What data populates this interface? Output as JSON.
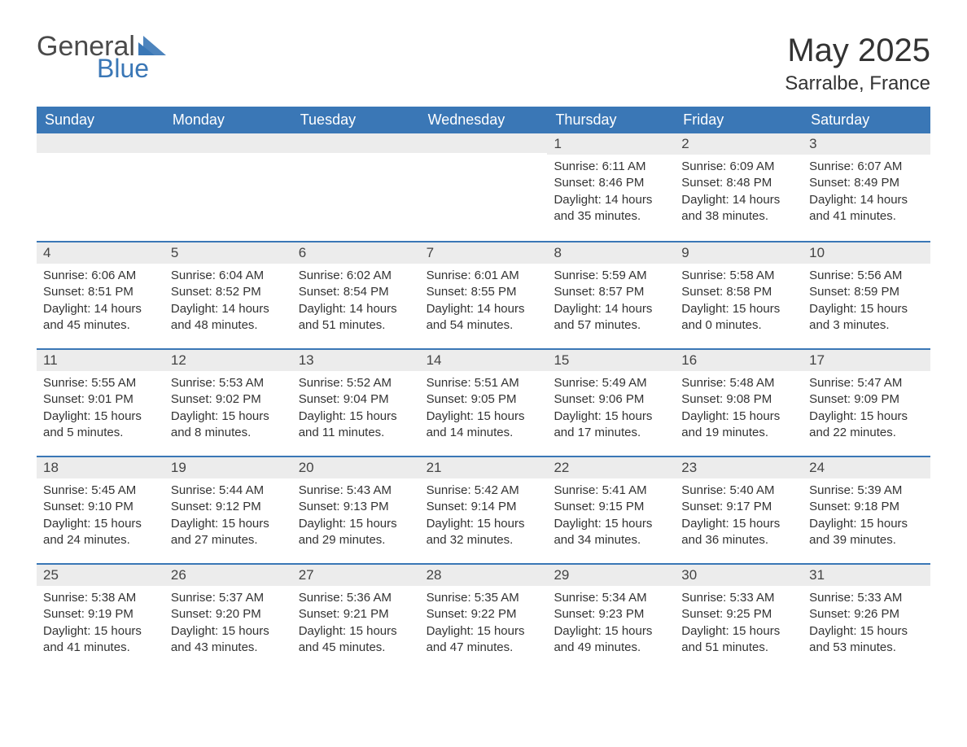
{
  "brand": {
    "general": "General",
    "blue": "Blue",
    "tri_color": "#3a77b6"
  },
  "header": {
    "month": "May 2025",
    "location": "Sarralbe, France"
  },
  "colors": {
    "header_bg": "#3a77b6",
    "header_text": "#ffffff",
    "daynum_bg": "#ececec",
    "week_border": "#3a77b6",
    "body_text": "#333333"
  },
  "daynames": [
    "Sunday",
    "Monday",
    "Tuesday",
    "Wednesday",
    "Thursday",
    "Friday",
    "Saturday"
  ],
  "weeks": [
    [
      {
        "n": "",
        "sr": "",
        "ss": "",
        "dl": ""
      },
      {
        "n": "",
        "sr": "",
        "ss": "",
        "dl": ""
      },
      {
        "n": "",
        "sr": "",
        "ss": "",
        "dl": ""
      },
      {
        "n": "",
        "sr": "",
        "ss": "",
        "dl": ""
      },
      {
        "n": "1",
        "sr": "Sunrise: 6:11 AM",
        "ss": "Sunset: 8:46 PM",
        "dl": "Daylight: 14 hours and 35 minutes."
      },
      {
        "n": "2",
        "sr": "Sunrise: 6:09 AM",
        "ss": "Sunset: 8:48 PM",
        "dl": "Daylight: 14 hours and 38 minutes."
      },
      {
        "n": "3",
        "sr": "Sunrise: 6:07 AM",
        "ss": "Sunset: 8:49 PM",
        "dl": "Daylight: 14 hours and 41 minutes."
      }
    ],
    [
      {
        "n": "4",
        "sr": "Sunrise: 6:06 AM",
        "ss": "Sunset: 8:51 PM",
        "dl": "Daylight: 14 hours and 45 minutes."
      },
      {
        "n": "5",
        "sr": "Sunrise: 6:04 AM",
        "ss": "Sunset: 8:52 PM",
        "dl": "Daylight: 14 hours and 48 minutes."
      },
      {
        "n": "6",
        "sr": "Sunrise: 6:02 AM",
        "ss": "Sunset: 8:54 PM",
        "dl": "Daylight: 14 hours and 51 minutes."
      },
      {
        "n": "7",
        "sr": "Sunrise: 6:01 AM",
        "ss": "Sunset: 8:55 PM",
        "dl": "Daylight: 14 hours and 54 minutes."
      },
      {
        "n": "8",
        "sr": "Sunrise: 5:59 AM",
        "ss": "Sunset: 8:57 PM",
        "dl": "Daylight: 14 hours and 57 minutes."
      },
      {
        "n": "9",
        "sr": "Sunrise: 5:58 AM",
        "ss": "Sunset: 8:58 PM",
        "dl": "Daylight: 15 hours and 0 minutes."
      },
      {
        "n": "10",
        "sr": "Sunrise: 5:56 AM",
        "ss": "Sunset: 8:59 PM",
        "dl": "Daylight: 15 hours and 3 minutes."
      }
    ],
    [
      {
        "n": "11",
        "sr": "Sunrise: 5:55 AM",
        "ss": "Sunset: 9:01 PM",
        "dl": "Daylight: 15 hours and 5 minutes."
      },
      {
        "n": "12",
        "sr": "Sunrise: 5:53 AM",
        "ss": "Sunset: 9:02 PM",
        "dl": "Daylight: 15 hours and 8 minutes."
      },
      {
        "n": "13",
        "sr": "Sunrise: 5:52 AM",
        "ss": "Sunset: 9:04 PM",
        "dl": "Daylight: 15 hours and 11 minutes."
      },
      {
        "n": "14",
        "sr": "Sunrise: 5:51 AM",
        "ss": "Sunset: 9:05 PM",
        "dl": "Daylight: 15 hours and 14 minutes."
      },
      {
        "n": "15",
        "sr": "Sunrise: 5:49 AM",
        "ss": "Sunset: 9:06 PM",
        "dl": "Daylight: 15 hours and 17 minutes."
      },
      {
        "n": "16",
        "sr": "Sunrise: 5:48 AM",
        "ss": "Sunset: 9:08 PM",
        "dl": "Daylight: 15 hours and 19 minutes."
      },
      {
        "n": "17",
        "sr": "Sunrise: 5:47 AM",
        "ss": "Sunset: 9:09 PM",
        "dl": "Daylight: 15 hours and 22 minutes."
      }
    ],
    [
      {
        "n": "18",
        "sr": "Sunrise: 5:45 AM",
        "ss": "Sunset: 9:10 PM",
        "dl": "Daylight: 15 hours and 24 minutes."
      },
      {
        "n": "19",
        "sr": "Sunrise: 5:44 AM",
        "ss": "Sunset: 9:12 PM",
        "dl": "Daylight: 15 hours and 27 minutes."
      },
      {
        "n": "20",
        "sr": "Sunrise: 5:43 AM",
        "ss": "Sunset: 9:13 PM",
        "dl": "Daylight: 15 hours and 29 minutes."
      },
      {
        "n": "21",
        "sr": "Sunrise: 5:42 AM",
        "ss": "Sunset: 9:14 PM",
        "dl": "Daylight: 15 hours and 32 minutes."
      },
      {
        "n": "22",
        "sr": "Sunrise: 5:41 AM",
        "ss": "Sunset: 9:15 PM",
        "dl": "Daylight: 15 hours and 34 minutes."
      },
      {
        "n": "23",
        "sr": "Sunrise: 5:40 AM",
        "ss": "Sunset: 9:17 PM",
        "dl": "Daylight: 15 hours and 36 minutes."
      },
      {
        "n": "24",
        "sr": "Sunrise: 5:39 AM",
        "ss": "Sunset: 9:18 PM",
        "dl": "Daylight: 15 hours and 39 minutes."
      }
    ],
    [
      {
        "n": "25",
        "sr": "Sunrise: 5:38 AM",
        "ss": "Sunset: 9:19 PM",
        "dl": "Daylight: 15 hours and 41 minutes."
      },
      {
        "n": "26",
        "sr": "Sunrise: 5:37 AM",
        "ss": "Sunset: 9:20 PM",
        "dl": "Daylight: 15 hours and 43 minutes."
      },
      {
        "n": "27",
        "sr": "Sunrise: 5:36 AM",
        "ss": "Sunset: 9:21 PM",
        "dl": "Daylight: 15 hours and 45 minutes."
      },
      {
        "n": "28",
        "sr": "Sunrise: 5:35 AM",
        "ss": "Sunset: 9:22 PM",
        "dl": "Daylight: 15 hours and 47 minutes."
      },
      {
        "n": "29",
        "sr": "Sunrise: 5:34 AM",
        "ss": "Sunset: 9:23 PM",
        "dl": "Daylight: 15 hours and 49 minutes."
      },
      {
        "n": "30",
        "sr": "Sunrise: 5:33 AM",
        "ss": "Sunset: 9:25 PM",
        "dl": "Daylight: 15 hours and 51 minutes."
      },
      {
        "n": "31",
        "sr": "Sunrise: 5:33 AM",
        "ss": "Sunset: 9:26 PM",
        "dl": "Daylight: 15 hours and 53 minutes."
      }
    ]
  ]
}
